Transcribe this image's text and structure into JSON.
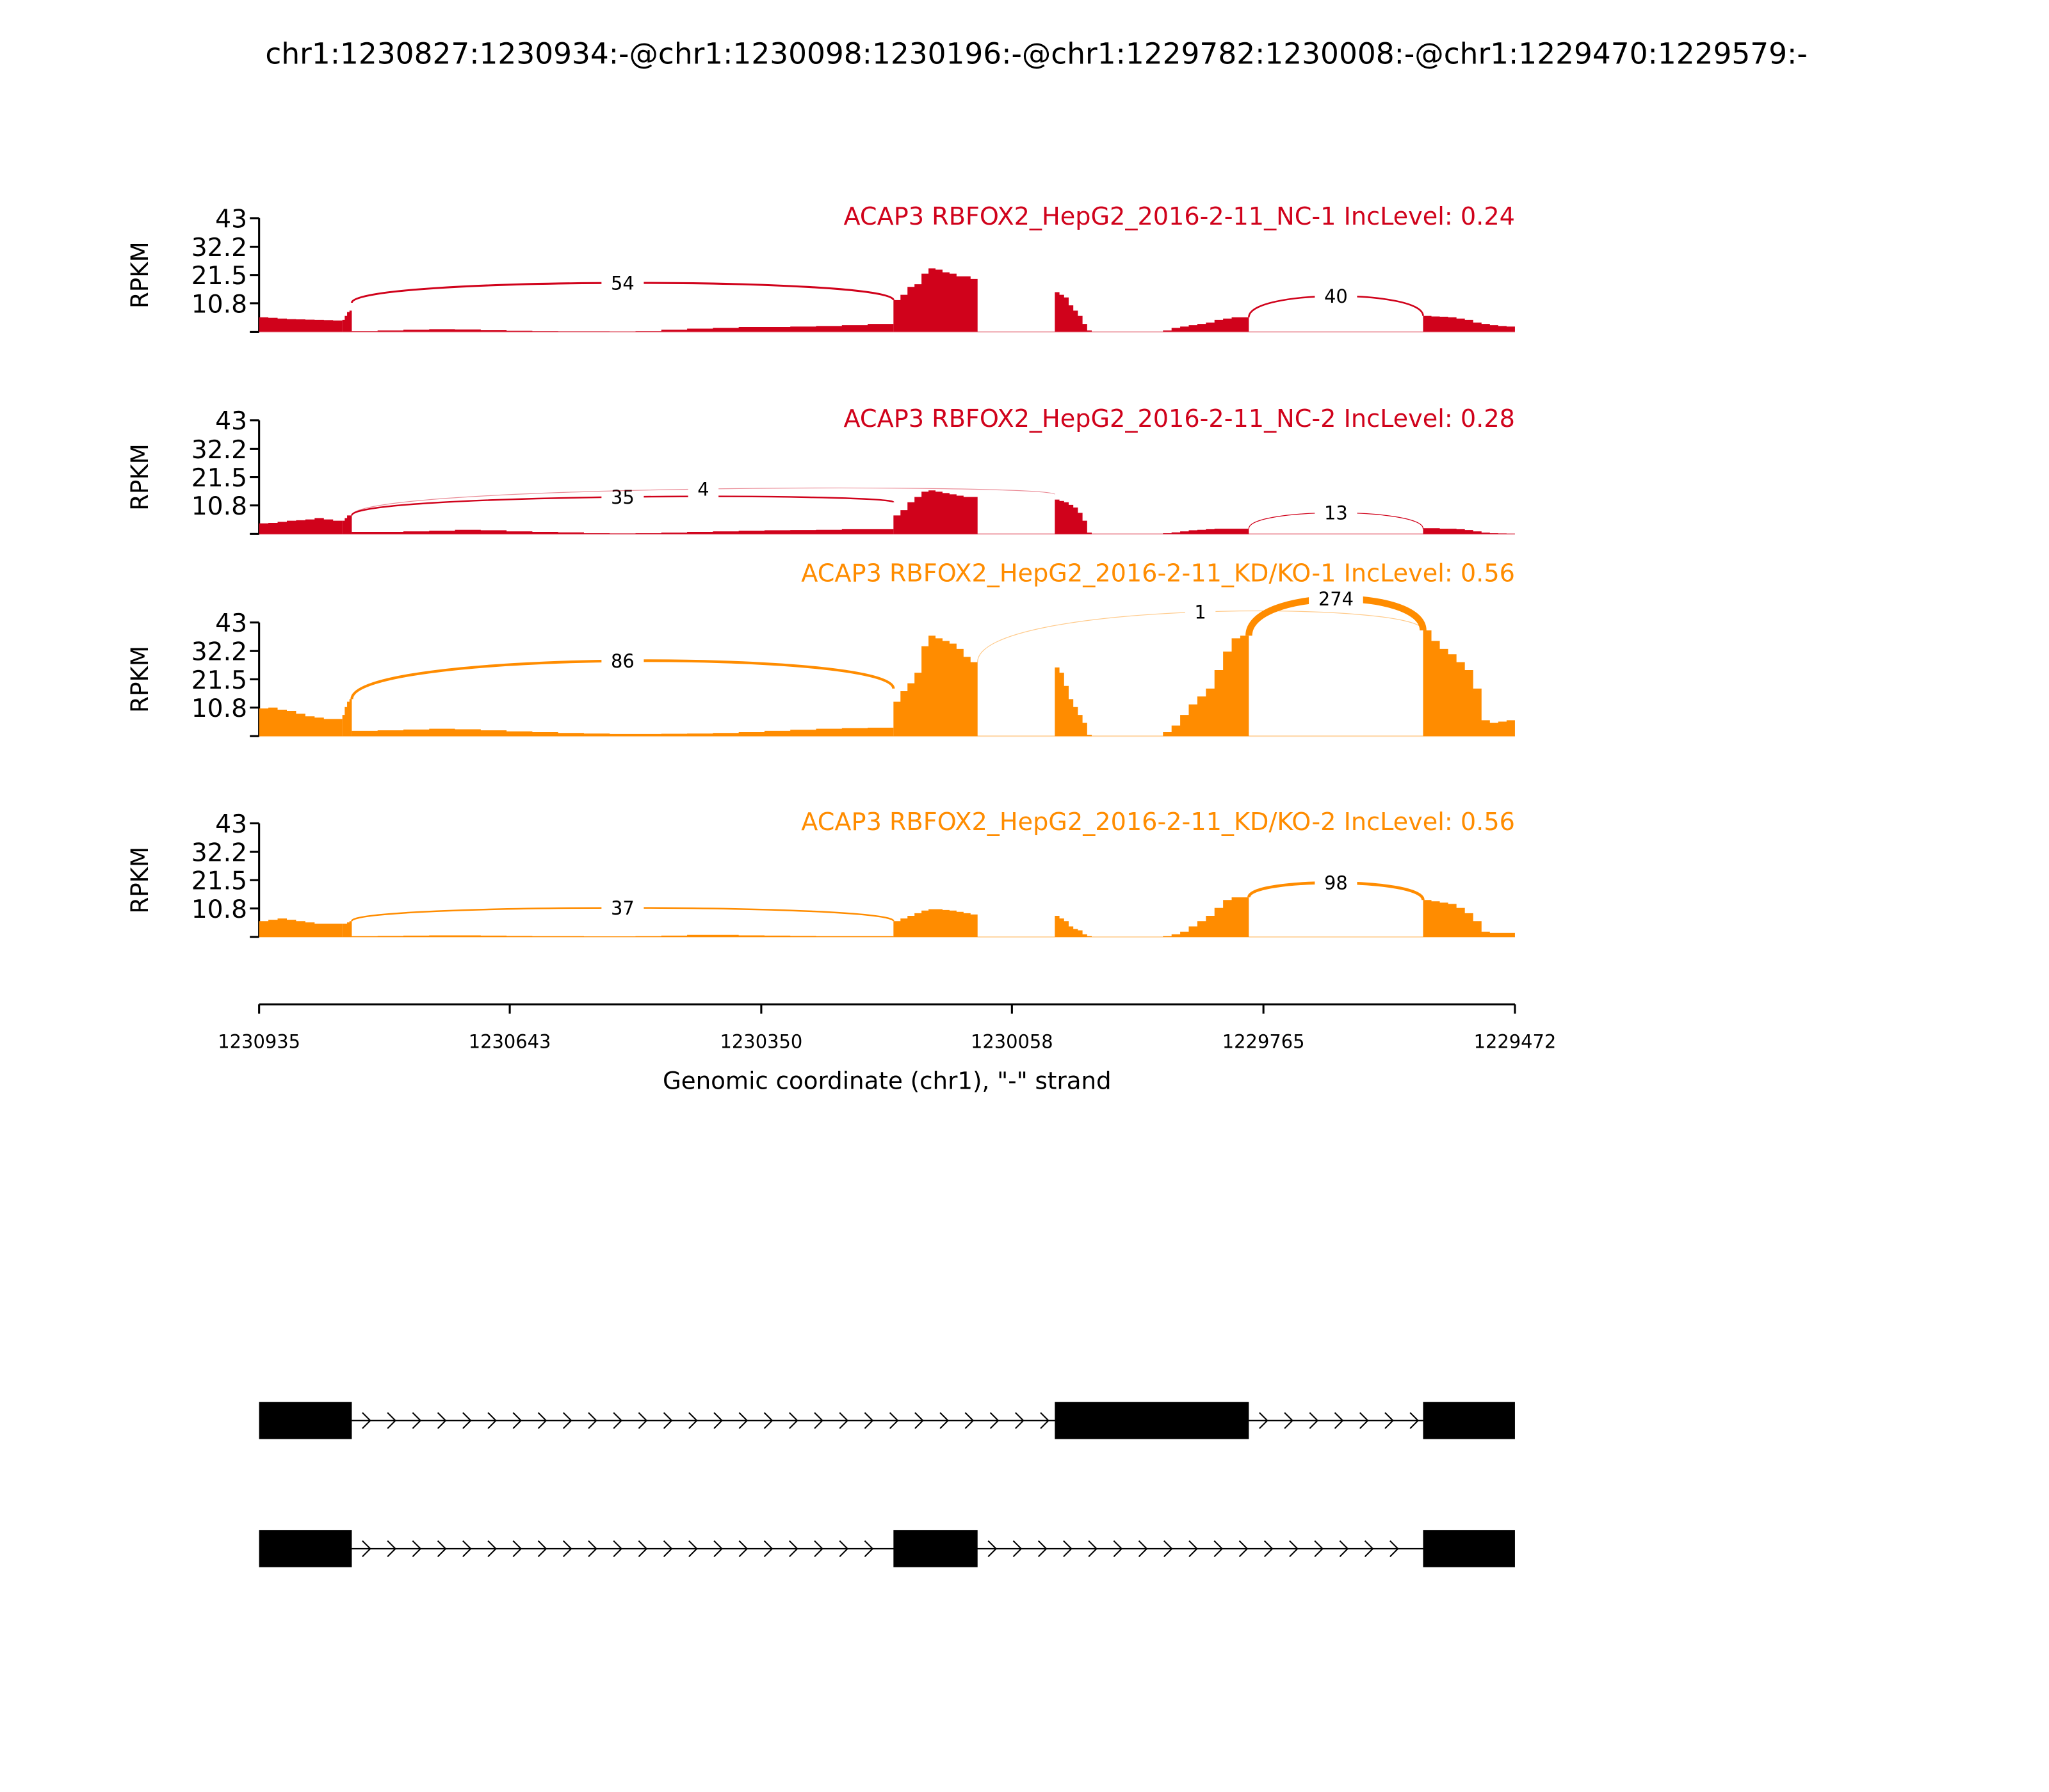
{
  "chart_data": {
    "type": "area",
    "title": "chr1:1230827:1230934:-@chr1:1230098:1230196:-@chr1:1229782:1230008:-@chr1:1229470:1229579:-",
    "xlabel": "Genomic coordinate (chr1), \"-\" strand",
    "ylabel": "RPKM",
    "xlim": [
      1230935,
      1229472
    ],
    "ylim": [
      0,
      43
    ],
    "yticks": [
      "43",
      "32.2",
      "21.5",
      "10.8"
    ],
    "ytick_values": [
      43,
      32.2,
      21.5,
      10.8,
      0
    ],
    "xticks": [
      "1230935",
      "1230643",
      "1230350",
      "1230058",
      "1229765",
      "1229472"
    ],
    "xtick_values": [
      1230935,
      1230643,
      1230350,
      1230058,
      1229765,
      1229472
    ],
    "panels": [
      {
        "title": "ACAP3 RBFOX2_HepG2_2016-2-11_NC-1 IncLevel: 0.24",
        "color": "#d0021b",
        "coverage": [
          [
            1230935,
            1230838,
            [
              5.5,
              5.3,
              5,
              4.8,
              4.7,
              4.6,
              4.5,
              4.4,
              4.3
            ]
          ],
          [
            1230838,
            1230827,
            [
              4.5,
              6,
              7.5,
              8
            ]
          ],
          [
            1230827,
            1230196,
            [
              0.3,
              0.5,
              0.8,
              1,
              0.9,
              0.6,
              0.4,
              0.3,
              0.2,
              0.2,
              0.1,
              0.3,
              0.8,
              1.2,
              1.5,
              1.8,
              1.8,
              2,
              2.2,
              2.5,
              3
            ]
          ],
          [
            1230196,
            1230098,
            [
              12,
              14,
              17,
              18,
              22,
              24,
              23.5,
              22.5,
              22,
              21,
              21,
              20
            ]
          ],
          [
            1230008,
            1229965,
            [
              15,
              14,
              13,
              10,
              8,
              6,
              3,
              0.5
            ]
          ],
          [
            1229882,
            1229782,
            [
              0.5,
              1.5,
              2,
              2.5,
              3,
              3.5,
              4.5,
              5,
              5.5,
              5.5
            ]
          ],
          [
            1229579,
            1229472,
            [
              6,
              5.8,
              5.7,
              5.5,
              5,
              4.5,
              3.5,
              3,
              2.5,
              2.2,
              2
            ]
          ]
        ],
        "junctions": [
          {
            "from": 1230827,
            "to": 1230196,
            "count": "54",
            "start": 11,
            "end": 12,
            "peak": 18.5
          },
          {
            "from": 1229782,
            "to": 1229579,
            "count": "40",
            "start": 5.5,
            "end": 6,
            "peak": 13.5
          }
        ]
      },
      {
        "title": "ACAP3 RBFOX2_HepG2_2016-2-11_NC-2 IncLevel: 0.28",
        "color": "#d0021b",
        "coverage": [
          [
            1230935,
            1230838,
            [
              4,
              4.2,
              4.6,
              5,
              5.2,
              5.5,
              6,
              5.5,
              5
            ]
          ],
          [
            1230838,
            1230827,
            [
              5,
              6,
              7,
              7
            ]
          ],
          [
            1230827,
            1230196,
            [
              0.8,
              0.8,
              1,
              1.2,
              1.6,
              1.4,
              1,
              0.8,
              0.6,
              0.3,
              0.2,
              0.3,
              0.5,
              0.8,
              1,
              1.2,
              1.4,
              1.5,
              1.6,
              1.8,
              1.8
            ]
          ],
          [
            1230196,
            1230098,
            [
              7,
              9,
              12,
              14,
              16,
              16.5,
              16,
              15.5,
              15,
              14.5,
              14,
              14
            ]
          ],
          [
            1230008,
            1229965,
            [
              13,
              12.5,
              12,
              11,
              10,
              8,
              5,
              0.5
            ]
          ],
          [
            1229882,
            1229782,
            [
              0.3,
              0.6,
              1,
              1.4,
              1.6,
              1.8,
              2,
              2,
              2,
              2
            ]
          ],
          [
            1229579,
            1229472,
            [
              2.2,
              2.2,
              2,
              2,
              1.8,
              1.5,
              1,
              0.5,
              0.3,
              0.2,
              0.1
            ]
          ]
        ],
        "junctions": [
          {
            "from": 1230827,
            "to": 1230196,
            "count": "35",
            "start": 7,
            "end": 12,
            "peak": 14
          },
          {
            "from": 1230827,
            "to": 1230008,
            "count": "4",
            "start": 7,
            "end": 15,
            "peak": 17
          },
          {
            "from": 1229782,
            "to": 1229579,
            "count": "13",
            "start": 2,
            "end": 2,
            "peak": 8
          }
        ]
      },
      {
        "title": "ACAP3 RBFOX2_HepG2_2016-2-11_KD/KO-1 IncLevel: 0.56",
        "color": "#ff8c00",
        "coverage": [
          [
            1230935,
            1230838,
            [
              10.5,
              10.8,
              10,
              9.5,
              8.5,
              7.5,
              7,
              6.5,
              6.5
            ]
          ],
          [
            1230838,
            1230827,
            [
              8,
              11,
              13,
              14
            ]
          ],
          [
            1230827,
            1230196,
            [
              2,
              2.2,
              2.5,
              2.8,
              2.6,
              2.2,
              1.8,
              1.5,
              1.2,
              1,
              0.8,
              0.8,
              0.9,
              1,
              1.2,
              1.5,
              2,
              2.4,
              2.8,
              3,
              3.2
            ]
          ],
          [
            1230196,
            1230098,
            [
              13,
              17,
              20,
              24,
              34,
              38,
              37,
              36,
              35,
              33,
              30,
              28
            ]
          ],
          [
            1230008,
            1229965,
            [
              26,
              24,
              19,
              14,
              11,
              8,
              5,
              0.5
            ]
          ],
          [
            1229882,
            1229782,
            [
              1.5,
              4,
              8,
              12,
              15,
              18,
              25,
              32,
              37,
              38
            ]
          ],
          [
            1229579,
            1229472,
            [
              40,
              36,
              33,
              31,
              28,
              25,
              18,
              6,
              5,
              5.5,
              6
            ]
          ]
        ],
        "junctions": [
          {
            "from": 1230827,
            "to": 1230196,
            "count": "86",
            "start": 14,
            "end": 18,
            "peak": 28.5
          },
          {
            "from": 1230098,
            "to": 1229579,
            "count": "1",
            "start": 28,
            "end": 40,
            "peak": 47
          },
          {
            "from": 1229782,
            "to": 1229579,
            "count": "274",
            "start": 38,
            "end": 40,
            "peak": 52
          }
        ]
      },
      {
        "title": "ACAP3 RBFOX2_HepG2_2016-2-11_KD/KO-2 IncLevel: 0.56",
        "color": "#ff8c00",
        "coverage": [
          [
            1230935,
            1230838,
            [
              6,
              6.5,
              7,
              6.5,
              6,
              5.5,
              5,
              5,
              5
            ]
          ],
          [
            1230838,
            1230827,
            [
              5,
              5,
              5.5,
              6
            ]
          ],
          [
            1230827,
            1230196,
            [
              0.3,
              0.4,
              0.5,
              0.6,
              0.6,
              0.5,
              0.4,
              0.3,
              0.3,
              0.2,
              0.2,
              0.3,
              0.5,
              0.8,
              0.8,
              0.6,
              0.5,
              0.4,
              0.3,
              0.3,
              0.3
            ]
          ],
          [
            1230196,
            1230098,
            [
              6,
              7,
              8,
              9,
              10,
              10.5,
              10.5,
              10.2,
              10,
              9.5,
              9,
              8.5
            ]
          ],
          [
            1230008,
            1229965,
            [
              8,
              7,
              6,
              4,
              3,
              2.5,
              1,
              0.3
            ]
          ],
          [
            1229882,
            1229782,
            [
              0.3,
              1,
              2,
              4,
              6,
              8,
              11,
              14,
              15,
              15
            ]
          ],
          [
            1229579,
            1229472,
            [
              14,
              13.5,
              13,
              12.5,
              11,
              9,
              6,
              2,
              1.5,
              1.5,
              1.5
            ]
          ]
        ],
        "junctions": [
          {
            "from": 1230827,
            "to": 1230196,
            "count": "37",
            "start": 6,
            "end": 6,
            "peak": 11
          },
          {
            "from": 1229782,
            "to": 1229579,
            "count": "98",
            "start": 15,
            "end": 14,
            "peak": 20.5
          }
        ]
      }
    ],
    "gene_models": [
      {
        "exons": [
          [
            1230935,
            1230827
          ],
          [
            1230008,
            1229782
          ],
          [
            1229579,
            1229472
          ]
        ]
      },
      {
        "exons": [
          [
            1230935,
            1230827
          ],
          [
            1230196,
            1230098
          ],
          [
            1229579,
            1229472
          ]
        ]
      }
    ]
  }
}
